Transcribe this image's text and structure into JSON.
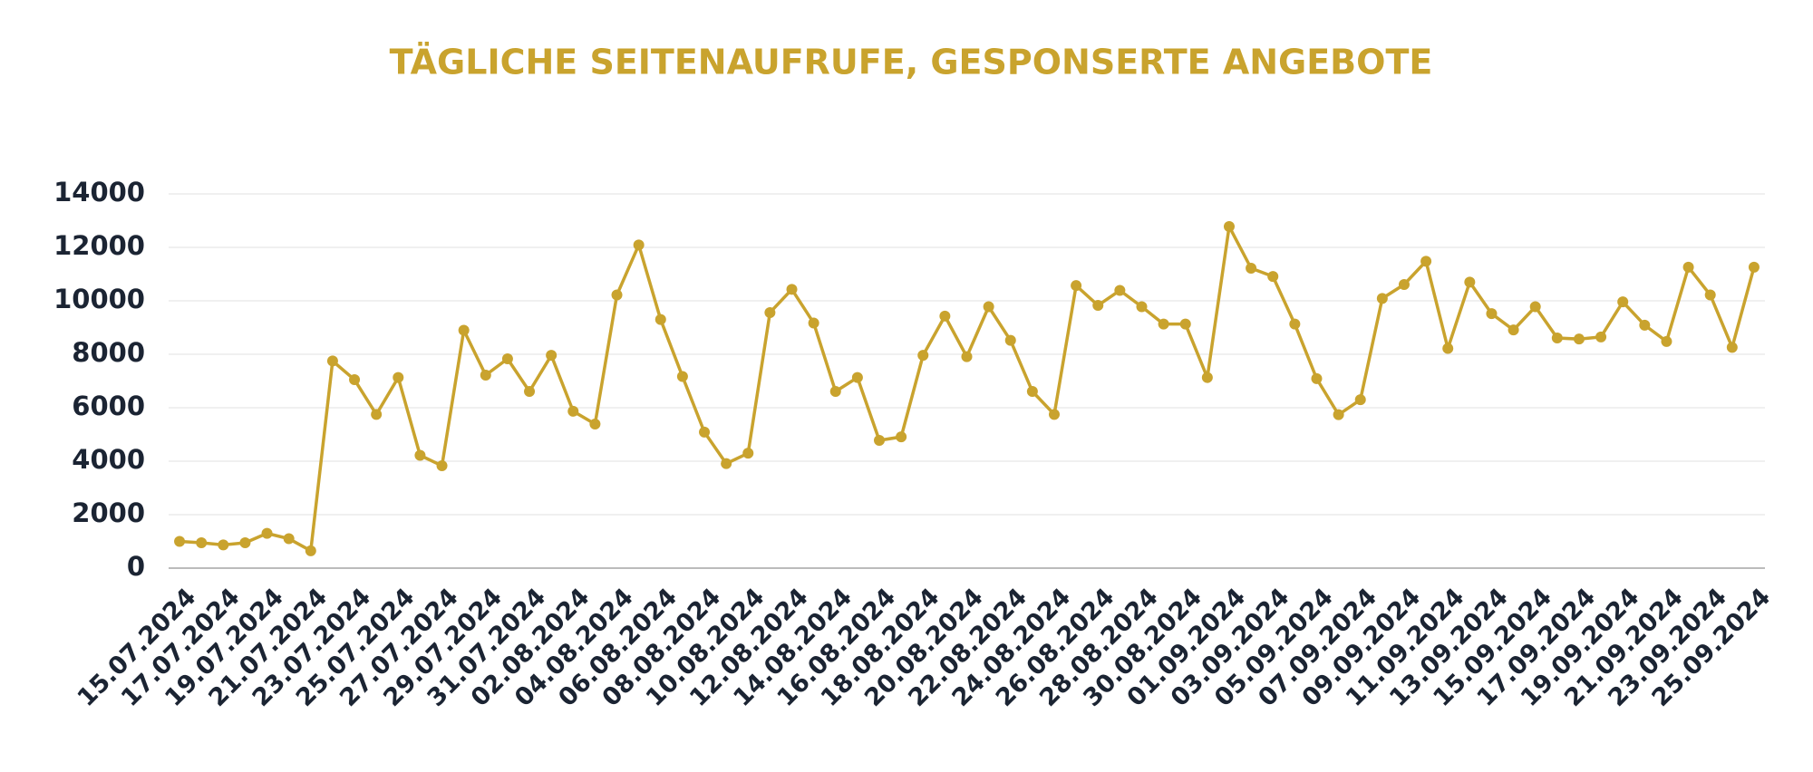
{
  "chart_data": {
    "type": "line",
    "title": "TÄGLICHE SEITENAUFRUFE, GESPONSERTE ANGEBOTE",
    "categories": [
      "15.07.2024",
      null,
      "17.07.2024",
      null,
      "19.07.2024",
      null,
      "21.07.2024",
      null,
      "23.07.2024",
      null,
      "25.07.2024",
      null,
      "27.07.2024",
      null,
      "29.07.2024",
      null,
      "31.07.2024",
      null,
      "02.08.2024",
      null,
      "04.08.2024",
      null,
      "06.08.2024",
      null,
      "08.08.2024",
      null,
      "10.08.2024",
      null,
      "12.08.2024",
      null,
      "14.08.2024",
      null,
      "16.08.2024",
      null,
      "18.08.2024",
      null,
      "20.08.2024",
      null,
      "22.08.2024",
      null,
      "24.08.2024",
      null,
      "26.08.2024",
      null,
      "28.08.2024",
      null,
      "30.08.2024",
      null,
      "01.09.2024",
      null,
      "03.09.2024",
      null,
      "05.09.2024",
      null,
      "07.09.2024",
      null,
      "09.09.2024",
      null,
      "11.09.2024",
      null,
      "13.09.2024",
      null,
      "15.09.2024",
      null,
      "17.09.2024",
      null,
      "19.09.2024",
      null,
      "21.09.2024",
      null,
      "23.09.2024",
      null,
      "25.09.2024"
    ],
    "values": [
      1000,
      950,
      870,
      950,
      1300,
      1100,
      650,
      7750,
      7050,
      5750,
      7130,
      4220,
      3830,
      8900,
      7220,
      7830,
      6610,
      7960,
      5870,
      5390,
      10220,
      12090,
      9300,
      7170,
      5090,
      3910,
      4300,
      9560,
      10430,
      9170,
      6610,
      7130,
      4780,
      4910,
      7960,
      9430,
      7910,
      9780,
      8520,
      6610,
      5750,
      10570,
      9830,
      10390,
      9780,
      9130,
      9130,
      7130,
      12780,
      11220,
      10910,
      9130,
      7090,
      5740,
      6300,
      10090,
      10610,
      11480,
      8220,
      10700,
      9520,
      8910,
      9780,
      8610,
      8570,
      8650,
      9960,
      9090,
      8480,
      11260,
      10220,
      8260,
      11260
    ],
    "color": "#c9a32e",
    "ylim": [
      0,
      14000
    ],
    "yticks": [
      0,
      2000,
      4000,
      6000,
      8000,
      10000,
      12000,
      14000
    ],
    "grid": true
  }
}
